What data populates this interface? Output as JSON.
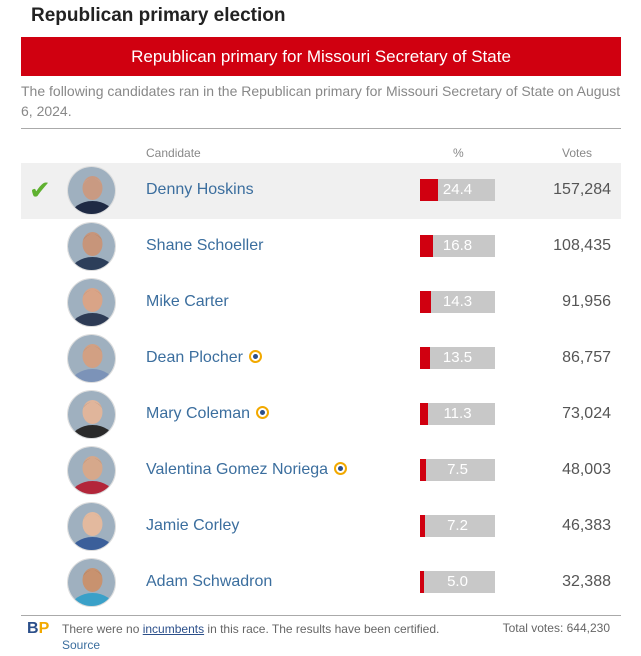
{
  "page_title": "Republican primary election",
  "banner": "Republican primary for Missouri Secretary of State",
  "intro": "The following candidates ran in the Republican primary for Missouri Secretary of State on August 6, 2024.",
  "columns": {
    "candidate": "Candidate",
    "percent": "%",
    "votes": "Votes"
  },
  "candidates": [
    {
      "name": "Denny Hoskins",
      "percent": "24.4",
      "votes": "157,284",
      "winner": true,
      "ballotpedia_icon": false,
      "skin": "#c99a82",
      "hair": "#d8d8d8",
      "shirt": "#1f2a44"
    },
    {
      "name": "Shane Schoeller",
      "percent": "16.8",
      "votes": "108,435",
      "winner": false,
      "ballotpedia_icon": false,
      "skin": "#c7957a",
      "hair": "#3a2b22",
      "shirt": "#2c3e5a"
    },
    {
      "name": "Mike Carter",
      "percent": "14.3",
      "votes": "91,956",
      "winner": false,
      "ballotpedia_icon": false,
      "skin": "#d9a487",
      "hair": "#6b4a35",
      "shirt": "#2d3b55"
    },
    {
      "name": "Dean Plocher",
      "percent": "13.5",
      "votes": "86,757",
      "winner": false,
      "ballotpedia_icon": true,
      "skin": "#d2a083",
      "hair": "#6a5140",
      "shirt": "#7c93b8"
    },
    {
      "name": "Mary Coleman",
      "percent": "11.3",
      "votes": "73,024",
      "winner": false,
      "ballotpedia_icon": true,
      "skin": "#e0b59b",
      "hair": "#2a1a14",
      "shirt": "#2a2a2a"
    },
    {
      "name": "Valentina Gomez Noriega",
      "percent": "7.5",
      "votes": "48,003",
      "winner": false,
      "ballotpedia_icon": true,
      "skin": "#d6a88b",
      "hair": "#3a2418",
      "shirt": "#b3263a"
    },
    {
      "name": "Jamie Corley",
      "percent": "7.2",
      "votes": "46,383",
      "winner": false,
      "ballotpedia_icon": false,
      "skin": "#e3b99e",
      "hair": "#b08a55",
      "shirt": "#3b5f9a"
    },
    {
      "name": "Adam Schwadron",
      "percent": "5.0",
      "votes": "32,388",
      "winner": false,
      "ballotpedia_icon": false,
      "skin": "#c8926f",
      "hair": "#2a1e16",
      "shirt": "#3aa0c8"
    }
  ],
  "footer": {
    "logo_b": "B",
    "logo_p": "P",
    "text_before": "There were no ",
    "incumbents_link": "incumbents",
    "text_after": " in this race. The results have been certified. ",
    "source_link": "Source",
    "total_votes": "Total votes: 644,230"
  },
  "colors": {
    "accent": "#d00010",
    "link": "#3b6e9e",
    "check": "#5fb130"
  }
}
